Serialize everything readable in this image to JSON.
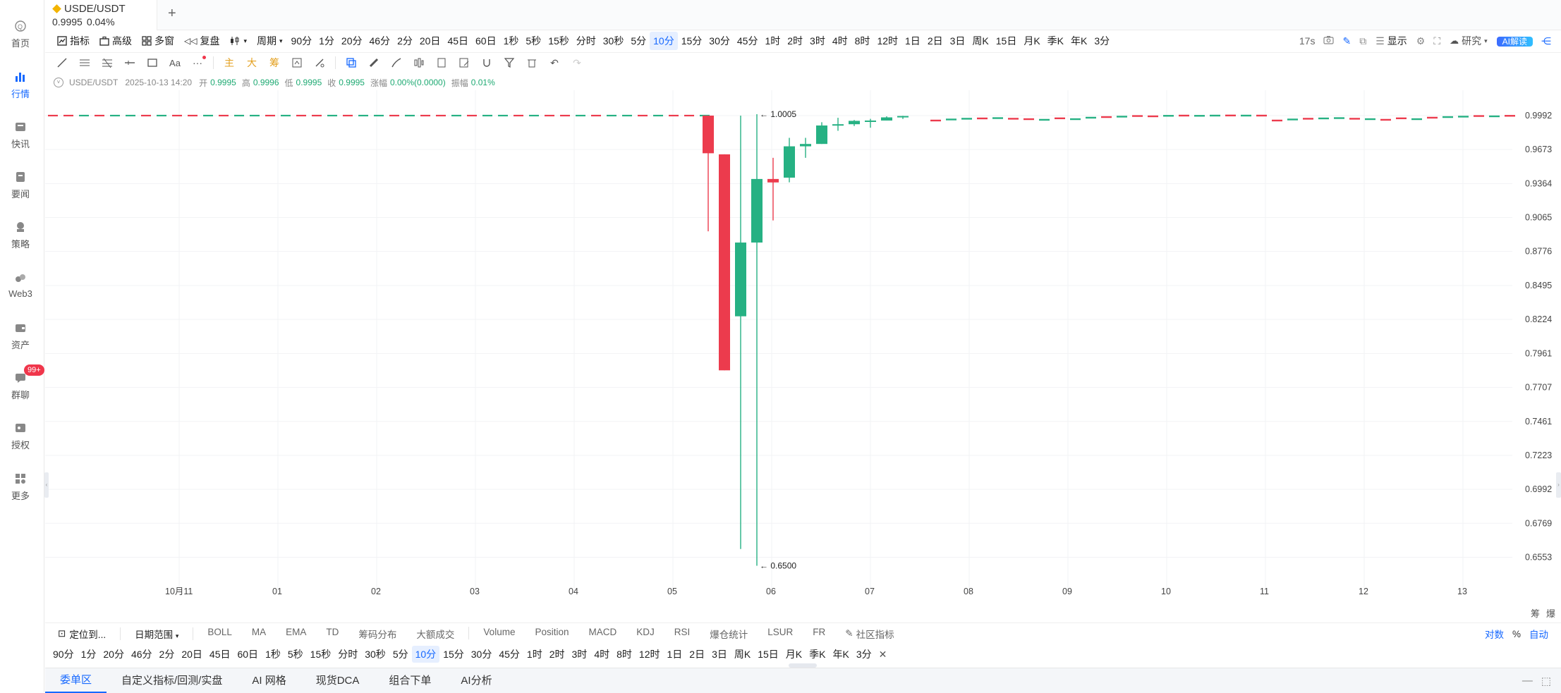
{
  "nav": {
    "items": [
      {
        "label": "首页",
        "icon": "home-icon"
      },
      {
        "label": "行情",
        "icon": "market-icon"
      },
      {
        "label": "快讯",
        "icon": "news-icon"
      },
      {
        "label": "要闻",
        "icon": "headline-icon"
      },
      {
        "label": "策略",
        "icon": "strategy-icon"
      },
      {
        "label": "Web3",
        "icon": "web3-icon"
      },
      {
        "label": "资产",
        "icon": "wallet-icon"
      },
      {
        "label": "群聊",
        "icon": "chat-icon"
      },
      {
        "label": "授权",
        "icon": "authorize-icon"
      },
      {
        "label": "更多",
        "icon": "more-icon"
      }
    ],
    "chat_badge": "99+"
  },
  "tab": {
    "symbol": "USDE/USDT",
    "price": "0.9995",
    "change": "0.04%",
    "add": "+"
  },
  "toolbar": {
    "indicator": "指标",
    "advanced": "高级",
    "multi": "多窗",
    "replay": "复盘",
    "period": "周期",
    "periods": [
      "90分",
      "1分",
      "20分",
      "46分",
      "2分",
      "20日",
      "45日",
      "60日",
      "1秒",
      "5秒",
      "15秒",
      "分时",
      "30秒",
      "5分",
      "10分",
      "15分",
      "30分",
      "45分",
      "1时",
      "2时",
      "3时",
      "4时",
      "8时",
      "12时",
      "1日",
      "2日",
      "3日",
      "周K",
      "15日",
      "月K",
      "季K",
      "年K",
      "3分"
    ],
    "selected_period": "10分",
    "countdown": "17s",
    "display": "显示",
    "research": "研究",
    "ai": "AI解读"
  },
  "drawbar": {
    "main": "主",
    "big": "大",
    "chip": "筹"
  },
  "info": {
    "symbol": "USDE/USDT",
    "datetime": "2025-10-13 14:20",
    "open_label": "开",
    "open": "0.9995",
    "high_label": "高",
    "high": "0.9996",
    "low_label": "低",
    "low": "0.9995",
    "close_label": "收",
    "close": "0.9995",
    "chg_label": "涨幅",
    "chg": "0.00%(0.0000)",
    "amp_label": "振幅",
    "amp": "0.01%"
  },
  "chart_data": {
    "type": "candlestick",
    "y_ticks": [
      0.9992,
      0.9673,
      0.9364,
      0.9065,
      0.8776,
      0.8495,
      0.8224,
      0.7961,
      0.7707,
      0.7461,
      0.7223,
      0.6992,
      0.6769,
      0.6553
    ],
    "ylim": [
      0.645,
      1.01
    ],
    "scale": "log",
    "x_ticks": [
      "10月11",
      "01",
      "02",
      "03",
      "04",
      "05",
      "06",
      "07",
      "08",
      "09",
      "10",
      "11",
      "12",
      "13"
    ],
    "high_marker": "← 1.0005",
    "low_marker": "← 0.6500",
    "flat_color_pattern": [
      "down",
      "down",
      "up",
      "down",
      "up",
      "up",
      "down",
      "up"
    ],
    "candles": [
      {
        "o": 0.9992,
        "h": 0.9992,
        "l": 0.8946,
        "c": 0.9639
      },
      {
        "o": 0.9629,
        "h": 0.9629,
        "l": 0.7834,
        "c": 0.7834
      },
      {
        "o": 0.8249,
        "h": 0.9992,
        "l": 0.6605,
        "c": 0.8851
      },
      {
        "o": 0.8851,
        "h": 1.0005,
        "l": 0.65,
        "c": 0.9405
      },
      {
        "o": 0.9405,
        "h": 0.9597,
        "l": 0.904,
        "c": 0.9374
      },
      {
        "o": 0.9417,
        "h": 0.9782,
        "l": 0.9375,
        "c": 0.9703
      },
      {
        "o": 0.9703,
        "h": 0.9782,
        "l": 0.9597,
        "c": 0.9725
      },
      {
        "o": 0.9725,
        "h": 0.9929,
        "l": 0.9725,
        "c": 0.9898
      },
      {
        "o": 0.9898,
        "h": 0.9971,
        "l": 0.9848,
        "c": 0.991
      },
      {
        "o": 0.991,
        "h": 0.995,
        "l": 0.9893,
        "c": 0.9942
      },
      {
        "o": 0.9942,
        "h": 0.9961,
        "l": 0.9877,
        "c": 0.9945
      },
      {
        "o": 0.9945,
        "h": 0.9985,
        "l": 0.9945,
        "c": 0.9975
      },
      {
        "o": 0.9975,
        "h": 0.999,
        "l": 0.996,
        "c": 0.9988
      }
    ],
    "colors": {
      "up": "#26b183",
      "down": "#ec3b4d"
    }
  },
  "indicators": {
    "locate": "定位到...",
    "daterange": "日期范围",
    "items": [
      "BOLL",
      "MA",
      "EMA",
      "TD",
      "筹码分布",
      "大额成交",
      "Volume",
      "Position",
      "MACD",
      "KDJ",
      "RSI",
      "爆仓统计",
      "LSUR",
      "FR"
    ],
    "community": "社区指标",
    "log": "对数",
    "pct": "%",
    "auto": "自动"
  },
  "bottom_periods": [
    "90分",
    "1分",
    "20分",
    "46分",
    "2分",
    "20日",
    "45日",
    "60日",
    "1秒",
    "5秒",
    "15秒",
    "分时",
    "30秒",
    "5分",
    "10分",
    "15分",
    "30分",
    "45分",
    "1时",
    "2时",
    "3时",
    "4时",
    "8时",
    "12时",
    "1日",
    "2日",
    "3日",
    "周K",
    "15日",
    "月K",
    "季K",
    "年K",
    "3分"
  ],
  "bottom_tabs": [
    "委单区",
    "自定义指标/回测/实盘",
    "AI 网格",
    "现货DCA",
    "组合下单",
    "AI分析"
  ],
  "side_right": {
    "chip": "筹",
    "burst": "爆"
  }
}
